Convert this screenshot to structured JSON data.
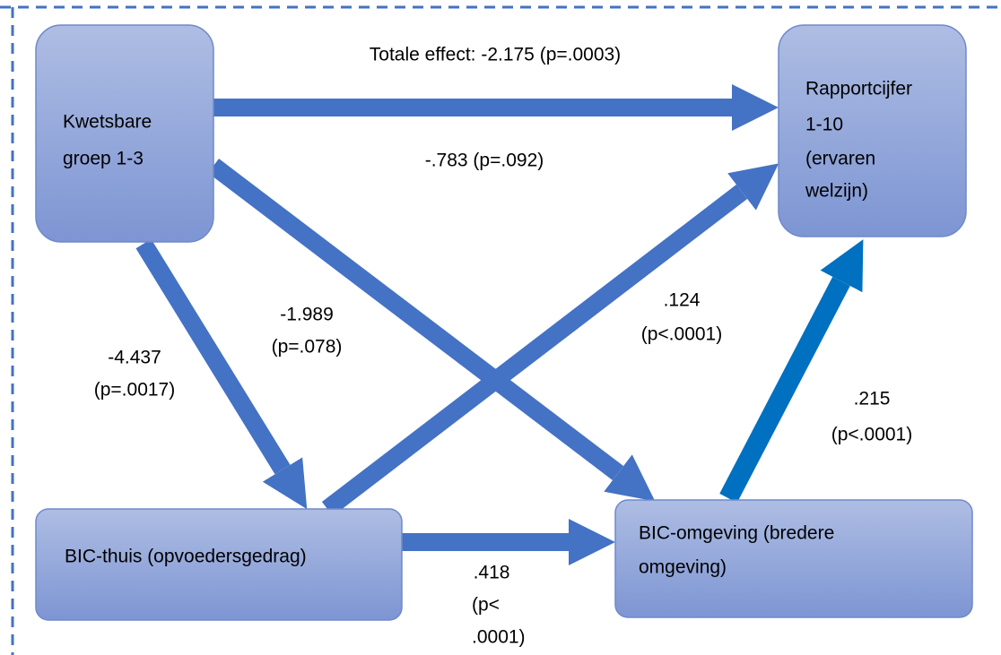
{
  "nodes": [
    {
      "lines": [
        "Kwetsbare",
        "groep 1-3"
      ]
    },
    {
      "lines": [
        "Rapportcijfer",
        "1-10",
        "(ervaren",
        "welzijn)"
      ]
    },
    {
      "lines": [
        "BIC-thuis (opvoedersgedrag)"
      ]
    },
    {
      "lines": [
        "BIC-omgeving (bredere",
        "omgeving)"
      ]
    }
  ],
  "edges": [
    {
      "label": [
        "Totale effect: -2.175 (p=.0003)"
      ]
    },
    {
      "label": [
        "-.783 (p=.092)"
      ]
    },
    {
      "label": [
        "-1.989",
        "(p=.078)"
      ]
    },
    {
      "label": [
        "-4.437",
        "(p=.0017)"
      ]
    },
    {
      "label": [
        ".124",
        "(p<.0001)"
      ]
    },
    {
      "label": [
        ".215",
        "(p<.0001)"
      ]
    },
    {
      "label": [
        ".418",
        "(p<",
        ".0001)"
      ]
    }
  ]
}
